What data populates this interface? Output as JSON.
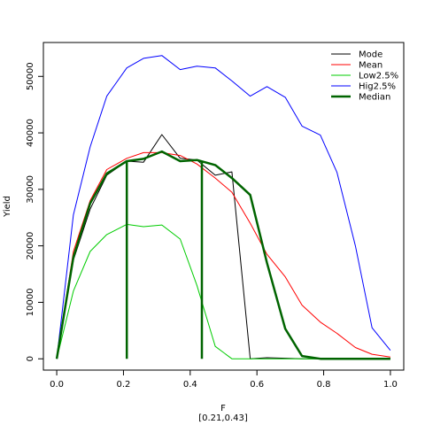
{
  "chart_data": {
    "type": "line",
    "xlabel": "F",
    "subtitle": "[0.21,0.43]",
    "ylabel": "Yield",
    "xlim": [
      -0.04,
      1.04
    ],
    "ylim": [
      -2000,
      56000
    ],
    "x_ticks": [
      0.0,
      0.2,
      0.4,
      0.6,
      0.8,
      1.0
    ],
    "x_tick_labels": [
      "0.0",
      "0.2",
      "0.4",
      "0.6",
      "0.8",
      "1.0"
    ],
    "y_ticks": [
      0,
      10000,
      20000,
      30000,
      40000,
      50000
    ],
    "y_tick_labels": [
      "0",
      "10000",
      "20000",
      "30000",
      "40000",
      "50000"
    ],
    "grid": false,
    "legend_position": "top-right",
    "series": [
      {
        "name": "Mode",
        "color": "#000000",
        "width": 1,
        "x": [
          0,
          0.05,
          0.1,
          0.15,
          0.21,
          0.26,
          0.315,
          0.37,
          0.42,
          0.475,
          0.525,
          0.58,
          0.63,
          0.685,
          0.735,
          0.79,
          0.84,
          0.895,
          0.945,
          1.0
        ],
        "y": [
          0,
          17500,
          26500,
          32500,
          35000,
          34800,
          39700,
          35500,
          35200,
          32500,
          33100,
          0,
          200,
          100,
          0,
          0,
          0,
          0,
          0,
          0
        ]
      },
      {
        "name": "Mean",
        "color": "#ff0000",
        "width": 1,
        "x": [
          0,
          0.05,
          0.1,
          0.15,
          0.21,
          0.26,
          0.315,
          0.37,
          0.42,
          0.475,
          0.525,
          0.58,
          0.63,
          0.685,
          0.735,
          0.79,
          0.84,
          0.895,
          0.945,
          1.0
        ],
        "y": [
          0,
          19000,
          28000,
          33500,
          35500,
          36500,
          36500,
          36000,
          34500,
          32000,
          29500,
          24000,
          18500,
          14500,
          9500,
          6500,
          4500,
          2000,
          800,
          300
        ]
      },
      {
        "name": "Low2.5%",
        "color": "#00cc00",
        "width": 1,
        "x": [
          0,
          0.05,
          0.1,
          0.15,
          0.21,
          0.26,
          0.315,
          0.37,
          0.42,
          0.475,
          0.525,
          0.58,
          0.63,
          0.685,
          0.735,
          0.79,
          0.84,
          0.895,
          0.945,
          1.0
        ],
        "y": [
          0,
          12000,
          19000,
          22000,
          23800,
          23400,
          23700,
          21200,
          13000,
          2200,
          0,
          0,
          0,
          0,
          0,
          0,
          0,
          0,
          0,
          0
        ]
      },
      {
        "name": "Hig2.5%",
        "color": "#0000ff",
        "width": 1,
        "x": [
          0,
          0.05,
          0.1,
          0.15,
          0.21,
          0.26,
          0.315,
          0.37,
          0.42,
          0.475,
          0.525,
          0.58,
          0.63,
          0.685,
          0.735,
          0.79,
          0.84,
          0.895,
          0.945,
          1.0
        ],
        "y": [
          0,
          25500,
          37500,
          46500,
          51500,
          53200,
          53700,
          51200,
          51800,
          51500,
          49200,
          46500,
          48200,
          46300,
          41200,
          39600,
          33000,
          20000,
          5500,
          1500
        ]
      },
      {
        "name": "Median",
        "color": "#006400",
        "width": 2.5,
        "x": [
          0,
          0.05,
          0.1,
          0.15,
          0.21,
          0.26,
          0.315,
          0.37,
          0.42,
          0.475,
          0.525,
          0.58,
          0.63,
          0.685,
          0.735,
          0.79,
          0.84,
          0.895,
          0.945,
          1.0
        ],
        "y": [
          0,
          18000,
          27500,
          32800,
          35000,
          35400,
          36700,
          35000,
          35200,
          34300,
          32000,
          29000,
          17000,
          5300,
          500,
          0,
          0,
          0,
          0,
          0
        ]
      }
    ],
    "vertical_lines": [
      {
        "x": 0.21,
        "y_top": 35000,
        "color": "#006400"
      },
      {
        "x": 0.435,
        "y_top": 34800,
        "color": "#006400"
      }
    ]
  }
}
